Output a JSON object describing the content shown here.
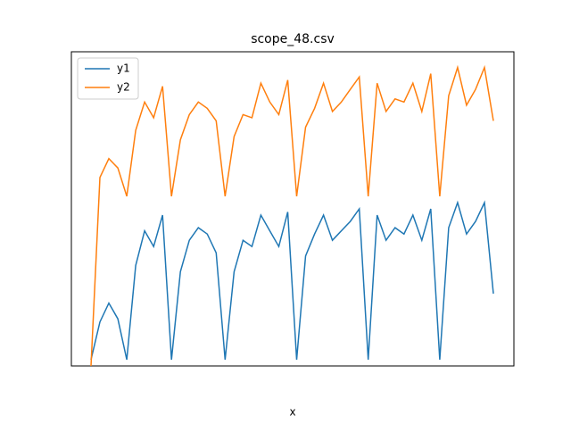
{
  "chart_data": {
    "type": "line",
    "title": "scope_48.csv",
    "x_label": "x",
    "legend": "upper left",
    "ylim": [
      0,
      100
    ],
    "series": [
      {
        "name": "y1",
        "color": "#1f77b4",
        "values": [
          2,
          14,
          20,
          15,
          2,
          32,
          43,
          38,
          48,
          2,
          30,
          40,
          44,
          42,
          36,
          2,
          30,
          40,
          38,
          48,
          43,
          38,
          49,
          2,
          35,
          42,
          48,
          40,
          43,
          46,
          50,
          2,
          48,
          40,
          44,
          42,
          48,
          40,
          50,
          2,
          44,
          52,
          42,
          46,
          52,
          23
        ]
      },
      {
        "name": "y2",
        "color": "#ff7f0e",
        "values": [
          0,
          60,
          66,
          63,
          54,
          75,
          84,
          79,
          89,
          54,
          72,
          80,
          84,
          82,
          78,
          54,
          73,
          80,
          79,
          90,
          84,
          80,
          91,
          54,
          76,
          82,
          90,
          81,
          84,
          88,
          92,
          54,
          90,
          81,
          85,
          84,
          90,
          81,
          93,
          54,
          86,
          95,
          83,
          88,
          95,
          78
        ]
      }
    ]
  }
}
